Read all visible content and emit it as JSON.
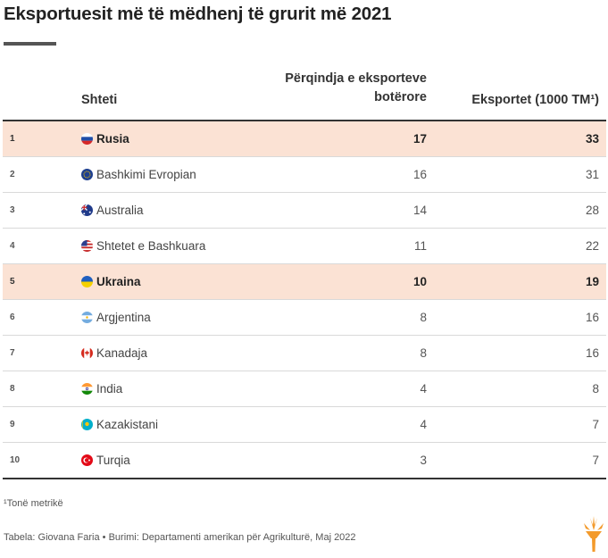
{
  "title": "Eksportuesit më të mëdhenj të grurit më 2021",
  "columns": {
    "country": "Shteti",
    "share_line1": "Përqindja e eksporteve",
    "share_line2": "botërore",
    "exports": "Eksportet (1000 TM¹)"
  },
  "rows": [
    {
      "rank": "1",
      "name": "Rusia",
      "share": "17",
      "exports": "33",
      "highlight": true,
      "flag": "russia-flag-icon"
    },
    {
      "rank": "2",
      "name": "Bashkimi Evropian",
      "share": "16",
      "exports": "31",
      "highlight": false,
      "flag": "eu-flag-icon"
    },
    {
      "rank": "3",
      "name": "Australia",
      "share": "14",
      "exports": "28",
      "highlight": false,
      "flag": "australia-flag-icon"
    },
    {
      "rank": "4",
      "name": "Shtetet e Bashkuara",
      "share": "11",
      "exports": "22",
      "highlight": false,
      "flag": "usa-flag-icon"
    },
    {
      "rank": "5",
      "name": "Ukraina",
      "share": "10",
      "exports": "19",
      "highlight": true,
      "flag": "ukraine-flag-icon"
    },
    {
      "rank": "6",
      "name": "Argjentina",
      "share": "8",
      "exports": "16",
      "highlight": false,
      "flag": "argentina-flag-icon"
    },
    {
      "rank": "7",
      "name": "Kanadaja",
      "share": "8",
      "exports": "16",
      "highlight": false,
      "flag": "canada-flag-icon"
    },
    {
      "rank": "8",
      "name": "India",
      "share": "4",
      "exports": "8",
      "highlight": false,
      "flag": "india-flag-icon"
    },
    {
      "rank": "9",
      "name": "Kazakistani",
      "share": "4",
      "exports": "7",
      "highlight": false,
      "flag": "kazakhstan-flag-icon"
    },
    {
      "rank": "10",
      "name": "Turqia",
      "share": "3",
      "exports": "7",
      "highlight": false,
      "flag": "turkey-flag-icon"
    }
  ],
  "footnote": "¹Tonë metrikë",
  "source": "Tabela: Giovana Faria • Burimi: Departamenti amerikan për Agrikulturë, Maj 2022",
  "colors": {
    "highlight_row": "#fbe2d4",
    "logo": "#f39a2b",
    "rule": "#333333"
  }
}
